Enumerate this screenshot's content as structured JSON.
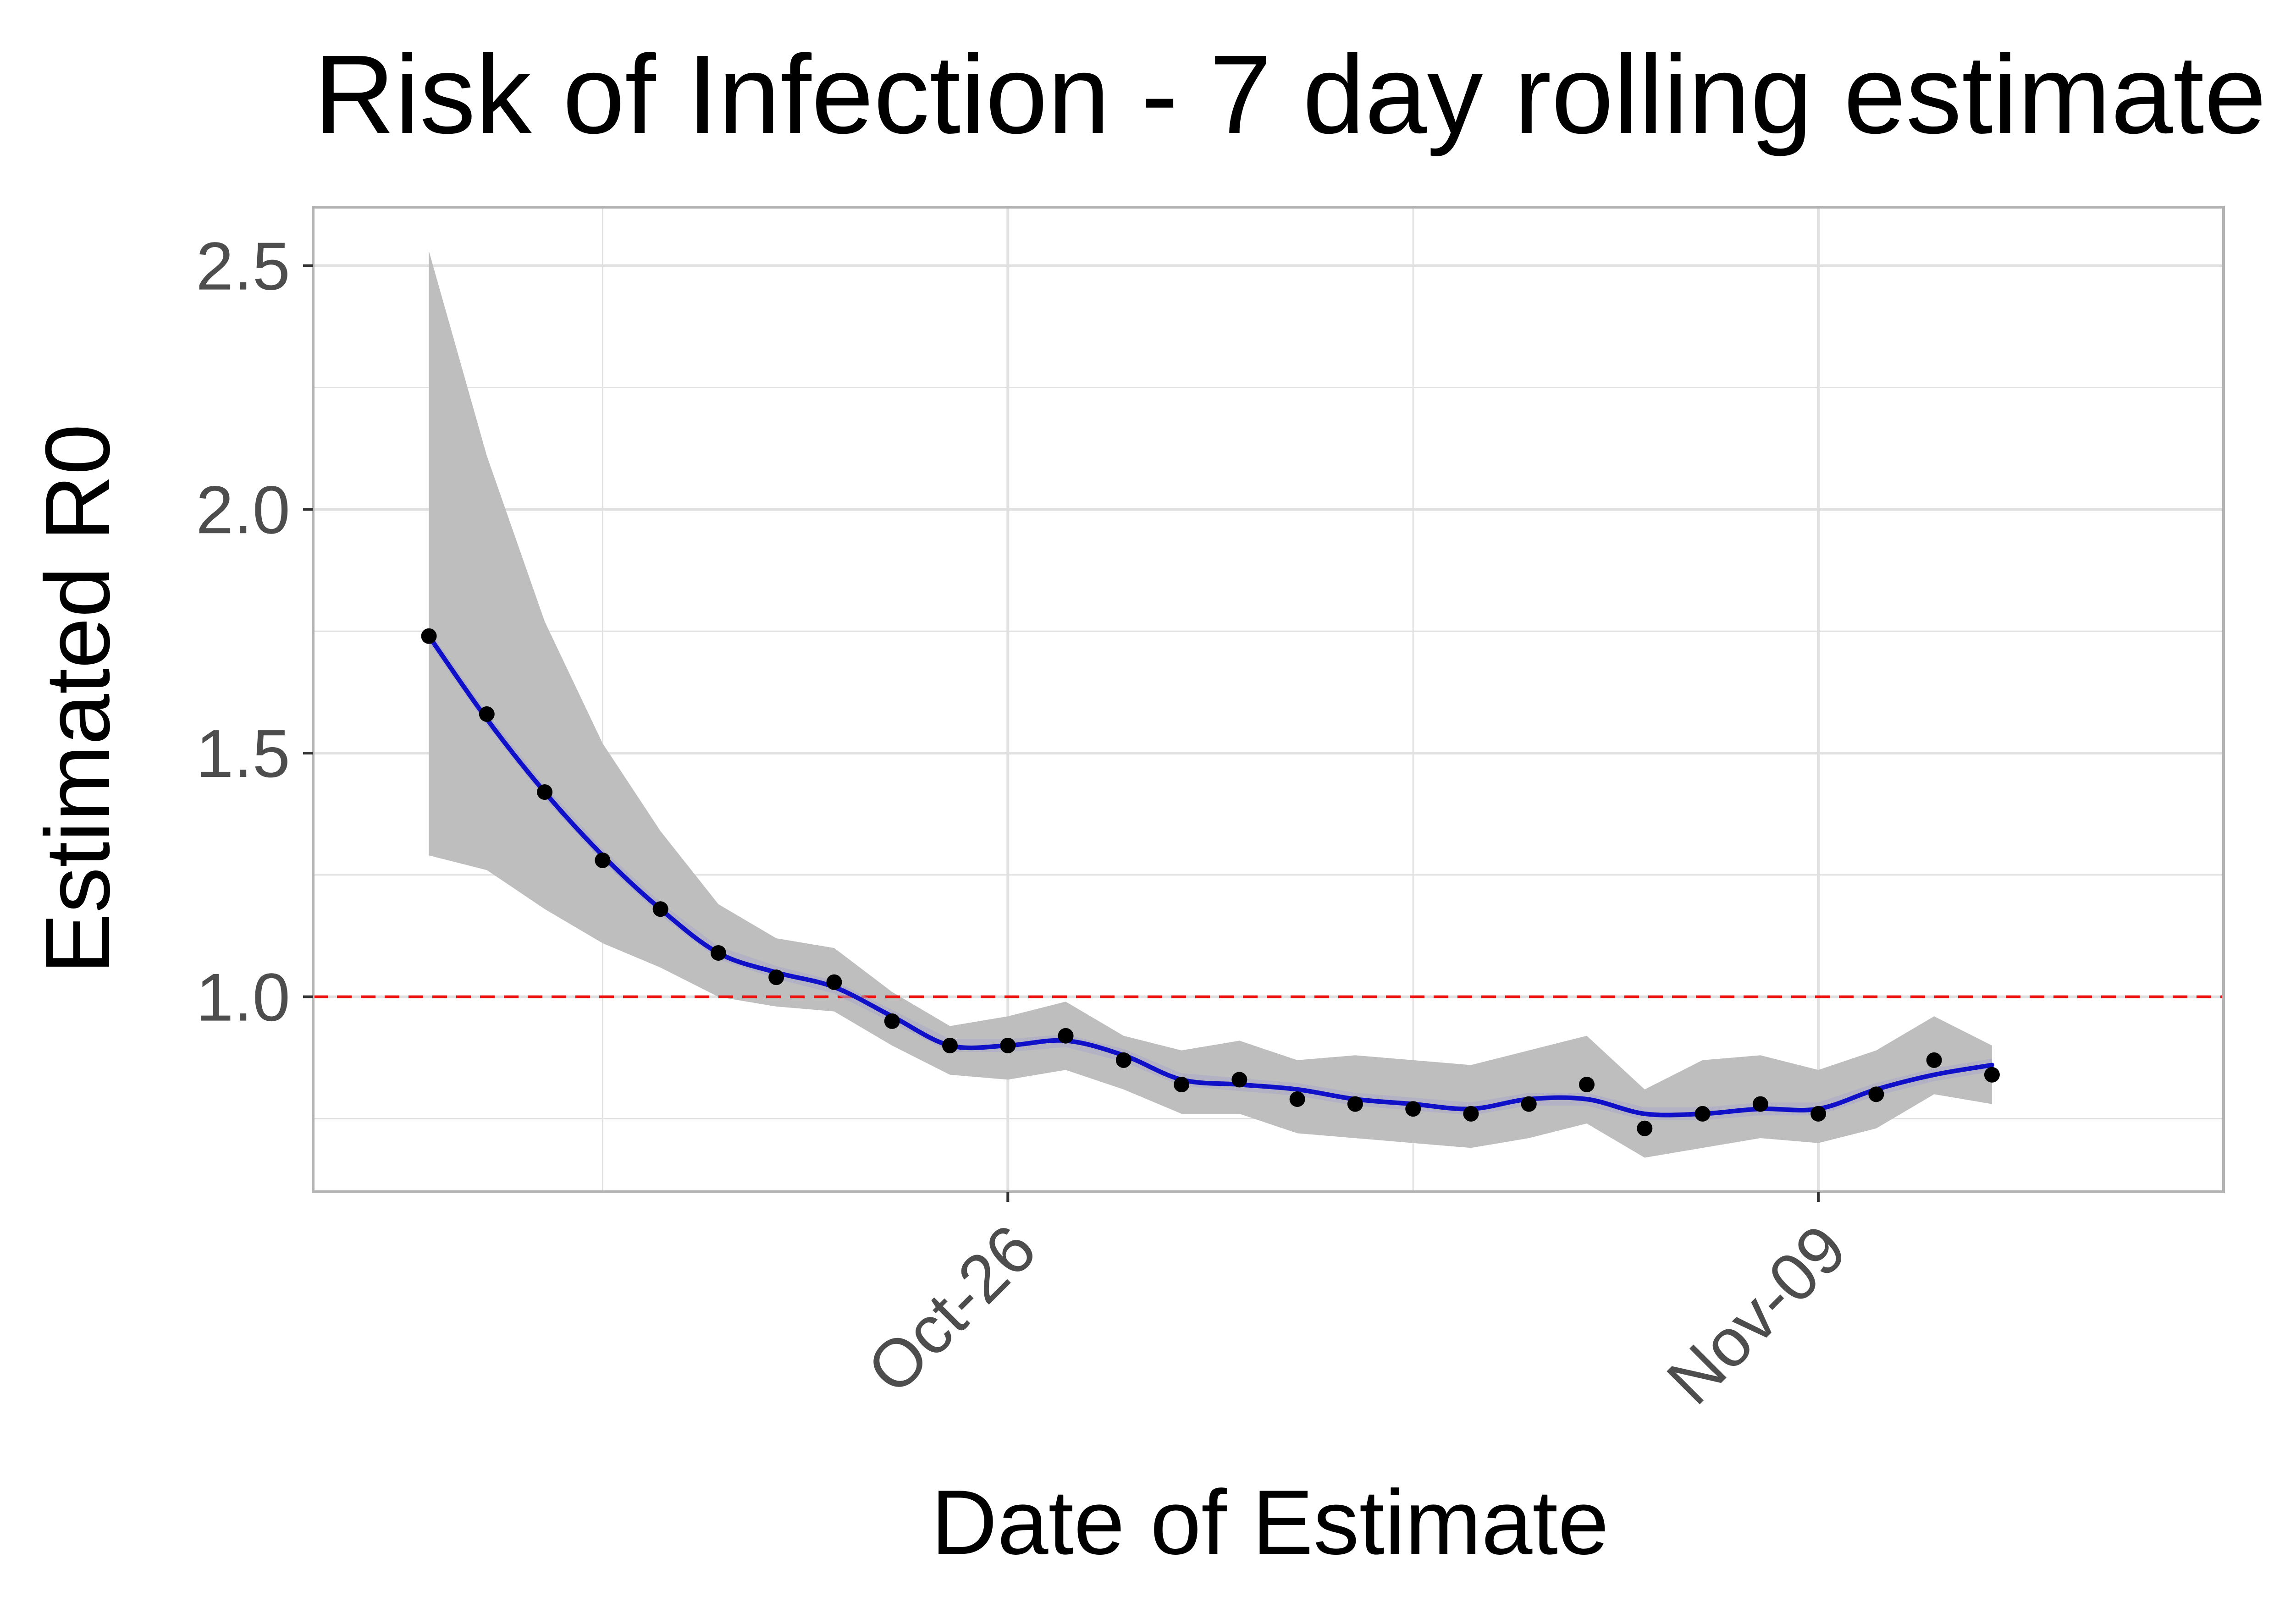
{
  "chart_data": {
    "type": "line",
    "title": "Risk of Infection - 7 day rolling estimate",
    "xlabel": "Date of Estimate",
    "ylabel": "Estimated R0",
    "xlim": [
      "2020-10-14",
      "2020-11-16"
    ],
    "ylim": [
      0.6,
      2.62
    ],
    "x_ticks": [
      {
        "label": "Oct-26",
        "date": "2020-10-26"
      },
      {
        "label": "Nov-09",
        "date": "2020-11-09"
      }
    ],
    "y_ticks": [
      1.0,
      1.5,
      2.0,
      2.5
    ],
    "y_tick_labels": [
      "1.0",
      "1.5",
      "2.0",
      "2.5"
    ],
    "reference_line": {
      "y": 1.0,
      "style": "dashed",
      "color": "#ee1111"
    },
    "grid": true,
    "colors": {
      "smooth_line": "#1010c8",
      "ribbon": "#bebebe",
      "points": "#000000",
      "panel_border": "#b3b3b3",
      "grid": "#e0e0e0"
    },
    "series": [
      {
        "kind": "points",
        "x": [
          "2020-10-16",
          "2020-10-17",
          "2020-10-18",
          "2020-10-19",
          "2020-10-20",
          "2020-10-21",
          "2020-10-22",
          "2020-10-23",
          "2020-10-24",
          "2020-10-25",
          "2020-10-26",
          "2020-10-27",
          "2020-10-28",
          "2020-10-29",
          "2020-10-30",
          "2020-10-31",
          "2020-11-01",
          "2020-11-02",
          "2020-11-03",
          "2020-11-04",
          "2020-11-05",
          "2020-11-06",
          "2020-11-07",
          "2020-11-08",
          "2020-11-09",
          "2020-11-10",
          "2020-11-11",
          "2020-11-12"
        ],
        "y": [
          1.74,
          1.58,
          1.42,
          1.28,
          1.18,
          1.09,
          1.04,
          1.03,
          0.95,
          0.9,
          0.9,
          0.92,
          0.87,
          0.82,
          0.83,
          0.79,
          0.78,
          0.77,
          0.76,
          0.78,
          0.82,
          0.73,
          0.76,
          0.78,
          0.76,
          0.8,
          0.87,
          0.84
        ],
        "lower": [
          1.29,
          1.26,
          1.18,
          1.11,
          1.06,
          1.0,
          0.98,
          0.97,
          0.9,
          0.84,
          0.83,
          0.85,
          0.81,
          0.76,
          0.76,
          0.72,
          0.71,
          0.7,
          0.69,
          0.71,
          0.74,
          0.67,
          0.69,
          0.71,
          0.7,
          0.73,
          0.8,
          0.78
        ],
        "upper": [
          2.53,
          2.11,
          1.77,
          1.52,
          1.34,
          1.19,
          1.12,
          1.1,
          1.01,
          0.94,
          0.96,
          0.99,
          0.92,
          0.89,
          0.91,
          0.87,
          0.88,
          0.87,
          0.86,
          0.89,
          0.92,
          0.81,
          0.87,
          0.88,
          0.85,
          0.89,
          0.96,
          0.9
        ]
      },
      {
        "kind": "smooth",
        "x": [
          "2020-10-16",
          "2020-10-17",
          "2020-10-18",
          "2020-10-19",
          "2020-10-20",
          "2020-10-21",
          "2020-10-22",
          "2020-10-23",
          "2020-10-24",
          "2020-10-25",
          "2020-10-26",
          "2020-10-27",
          "2020-10-28",
          "2020-10-29",
          "2020-10-30",
          "2020-10-31",
          "2020-11-01",
          "2020-11-02",
          "2020-11-03",
          "2020-11-04",
          "2020-11-05",
          "2020-11-06",
          "2020-11-07",
          "2020-11-08",
          "2020-11-09",
          "2020-11-10",
          "2020-11-11",
          "2020-11-12"
        ],
        "y": [
          1.74,
          1.57,
          1.42,
          1.29,
          1.18,
          1.09,
          1.05,
          1.02,
          0.96,
          0.9,
          0.9,
          0.91,
          0.88,
          0.83,
          0.82,
          0.81,
          0.79,
          0.78,
          0.77,
          0.79,
          0.79,
          0.76,
          0.76,
          0.77,
          0.77,
          0.81,
          0.84,
          0.86
        ]
      }
    ]
  }
}
